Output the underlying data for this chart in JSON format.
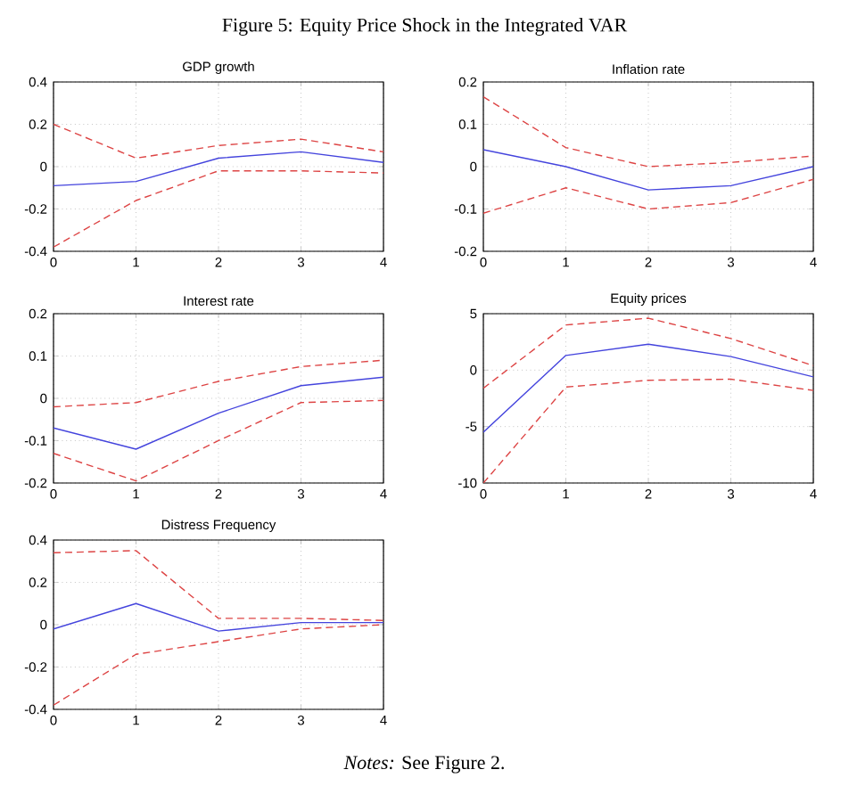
{
  "chart_data": [
    {
      "type": "line",
      "title": "GDP growth",
      "annotations": [
        "Figure 5: Equity Price Shock in the Integrated VAR"
      ],
      "x": [
        0,
        1,
        2,
        3,
        4
      ],
      "xlim": [
        0,
        4
      ],
      "xticks": [
        0,
        1,
        2,
        3,
        4
      ],
      "ylim": [
        -0.4,
        0.4
      ],
      "yticks": [
        -0.4,
        -0.2,
        0,
        0.2,
        0.4
      ],
      "grid": true,
      "series": [
        {
          "color": "#4444dd",
          "line_style": "solid",
          "values": [
            -0.09,
            -0.07,
            0.04,
            0.07,
            0.02
          ]
        },
        {
          "color": "#dd4444",
          "line_style": "dashed",
          "values": [
            0.2,
            0.04,
            0.1,
            0.13,
            0.07
          ]
        },
        {
          "color": "#dd4444",
          "line_style": "dashed",
          "values": [
            -0.38,
            -0.16,
            -0.02,
            -0.02,
            -0.03
          ]
        }
      ]
    },
    {
      "type": "line",
      "title": "Inflation rate",
      "x": [
        0,
        1,
        2,
        3,
        4
      ],
      "xlim": [
        0,
        4
      ],
      "xticks": [
        0,
        1,
        2,
        3,
        4
      ],
      "ylim": [
        -0.2,
        0.2
      ],
      "yticks": [
        -0.2,
        -0.1,
        0,
        0.1,
        0.2
      ],
      "grid": true,
      "series": [
        {
          "color": "#4444dd",
          "line_style": "solid",
          "values": [
            0.04,
            0,
            -0.055,
            -0.045,
            0
          ]
        },
        {
          "color": "#dd4444",
          "line_style": "dashed",
          "values": [
            0.165,
            0.045,
            0,
            0.01,
            0.025
          ]
        },
        {
          "color": "#dd4444",
          "line_style": "dashed",
          "values": [
            -0.11,
            -0.05,
            -0.1,
            -0.085,
            -0.03
          ]
        }
      ]
    },
    {
      "type": "line",
      "title": "Interest rate",
      "x": [
        0,
        1,
        2,
        3,
        4
      ],
      "xlim": [
        0,
        4
      ],
      "xticks": [
        0,
        1,
        2,
        3,
        4
      ],
      "ylim": [
        -0.2,
        0.2
      ],
      "yticks": [
        -0.2,
        -0.1,
        0,
        0.1,
        0.2
      ],
      "grid": true,
      "series": [
        {
          "color": "#4444dd",
          "line_style": "solid",
          "values": [
            -0.07,
            -0.12,
            -0.035,
            0.03,
            0.05
          ]
        },
        {
          "color": "#dd4444",
          "line_style": "dashed",
          "values": [
            -0.02,
            -0.01,
            0.04,
            0.075,
            0.09
          ]
        },
        {
          "color": "#dd4444",
          "line_style": "dashed",
          "values": [
            -0.13,
            -0.195,
            -0.1,
            -0.01,
            -0.005
          ]
        }
      ]
    },
    {
      "type": "line",
      "title": "Equity prices",
      "x": [
        0,
        1,
        2,
        3,
        4
      ],
      "xlim": [
        0,
        4
      ],
      "xticks": [
        0,
        1,
        2,
        3,
        4
      ],
      "ylim": [
        -10,
        5
      ],
      "yticks": [
        -10,
        -5,
        0,
        5
      ],
      "grid": true,
      "series": [
        {
          "color": "#4444dd",
          "line_style": "solid",
          "values": [
            -5.5,
            1.3,
            2.3,
            1.2,
            -0.6
          ]
        },
        {
          "color": "#dd4444",
          "line_style": "dashed",
          "values": [
            -1.6,
            4,
            4.6,
            2.8,
            0.4
          ]
        },
        {
          "color": "#dd4444",
          "line_style": "dashed",
          "values": [
            -10,
            -1.5,
            -0.9,
            -0.8,
            -1.8
          ]
        }
      ]
    },
    {
      "type": "line",
      "title": "Distress Frequency",
      "annotations": [
        "*Notes:* See Figure 2."
      ],
      "x": [
        0,
        1,
        2,
        3,
        4
      ],
      "xlim": [
        0,
        4
      ],
      "xticks": [
        0,
        1,
        2,
        3,
        4
      ],
      "ylim": [
        -0.4,
        0.4
      ],
      "yticks": [
        -0.4,
        -0.2,
        0,
        0.2,
        0.4
      ],
      "grid": true,
      "series": [
        {
          "color": "#4444dd",
          "line_style": "solid",
          "values": [
            -0.02,
            0.1,
            -0.03,
            0.01,
            0.01
          ]
        },
        {
          "color": "#dd4444",
          "line_style": "dashed",
          "values": [
            0.34,
            0.35,
            0.03,
            0.03,
            0.02
          ]
        },
        {
          "color": "#dd4444",
          "line_style": "dashed",
          "values": [
            -0.38,
            -0.14,
            -0.08,
            -0.02,
            0
          ]
        }
      ]
    }
  ]
}
